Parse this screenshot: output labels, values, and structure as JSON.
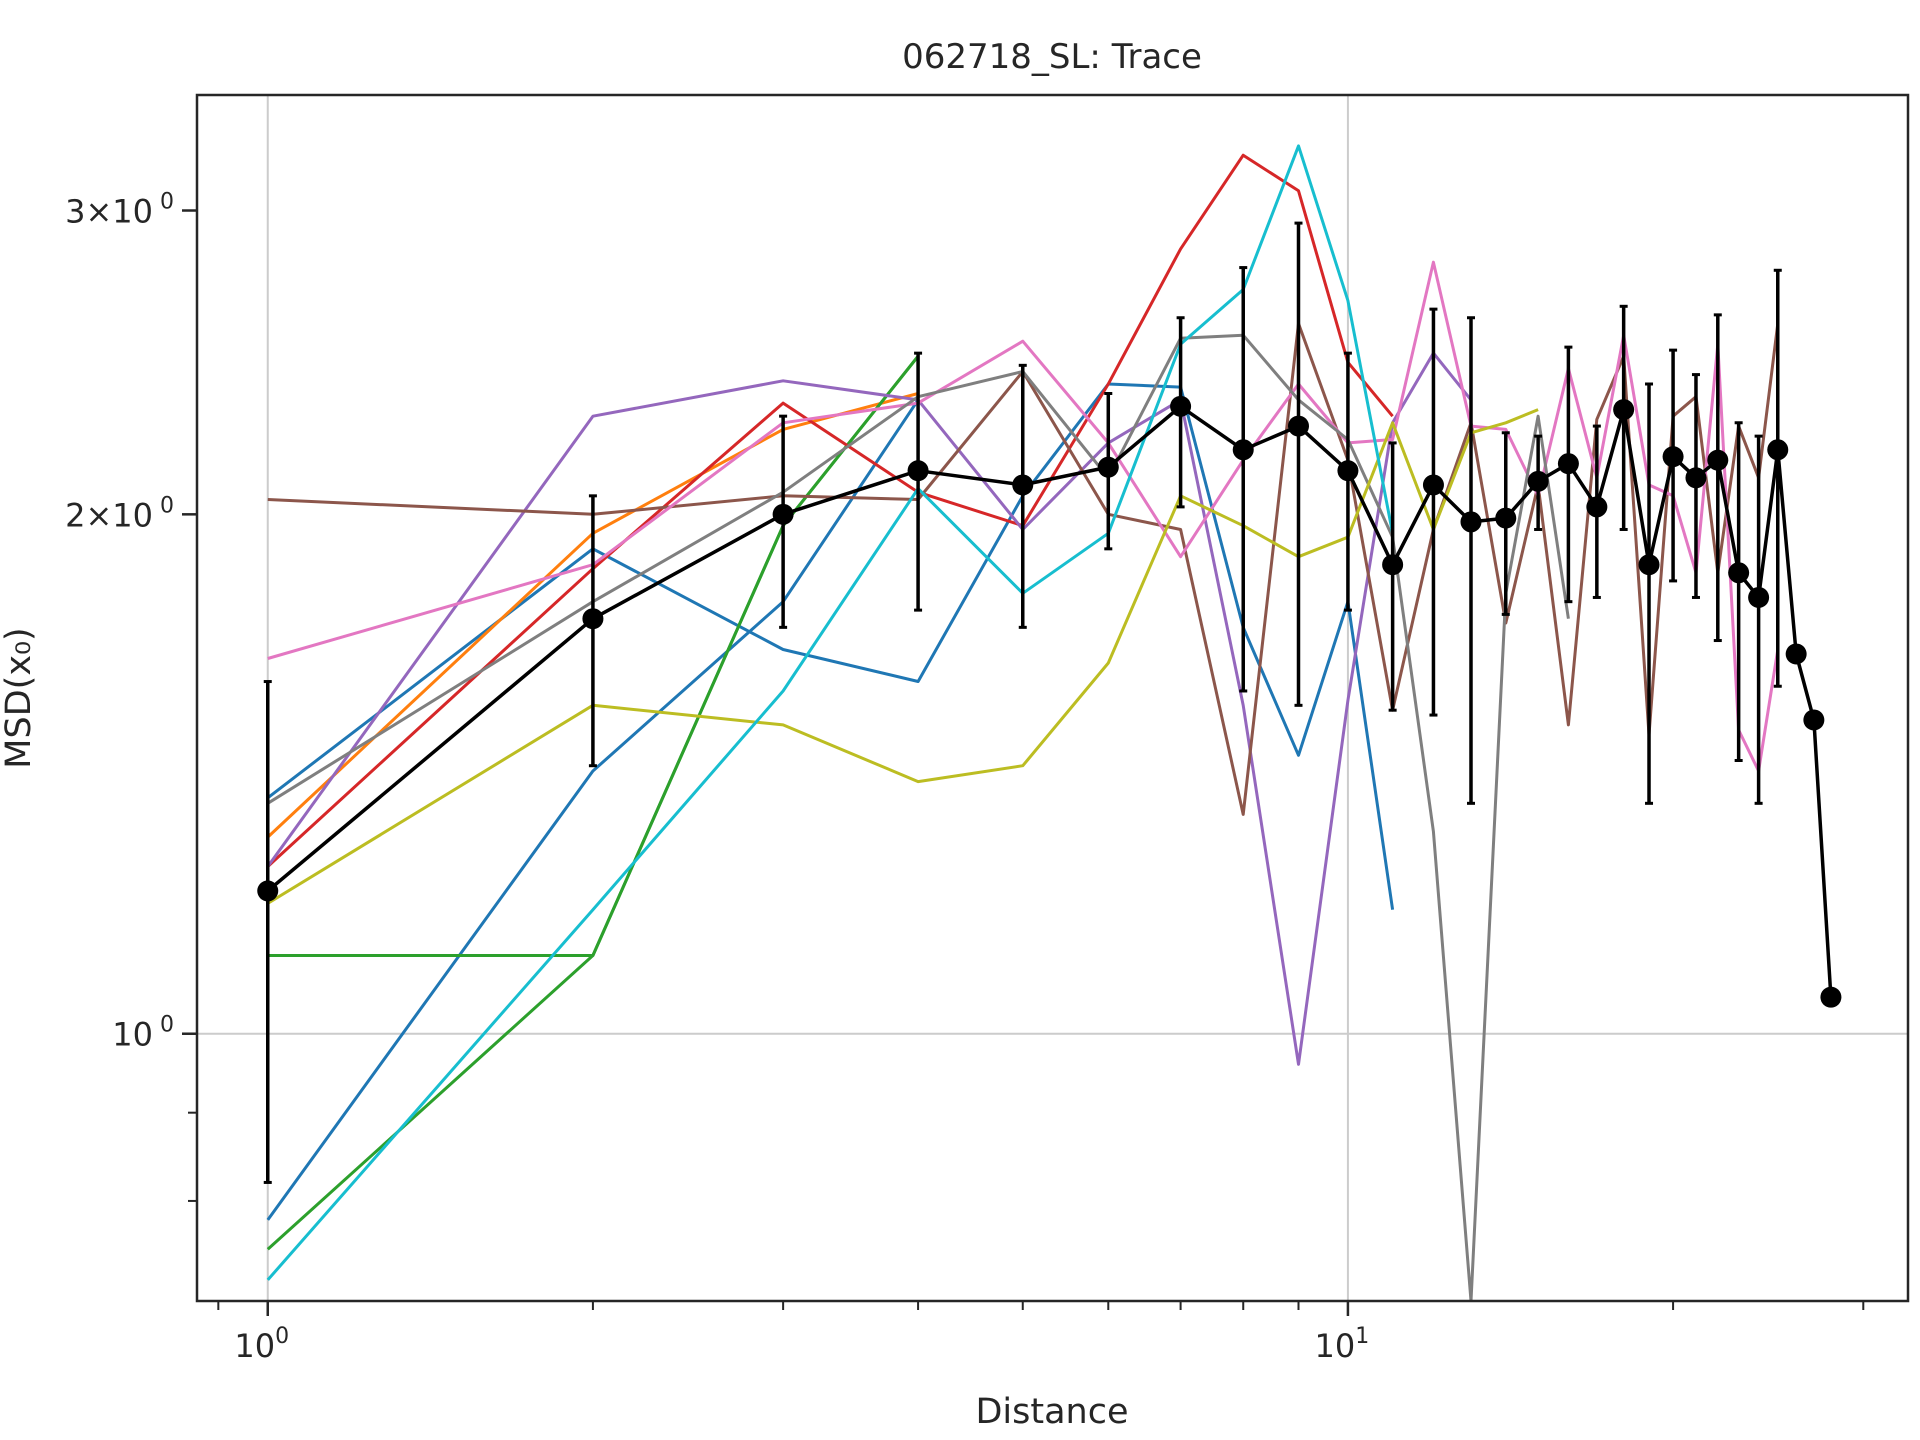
{
  "chart_data": {
    "type": "line",
    "title": "062718_SL: Trace",
    "xlabel": "Distance",
    "ylabel": "MSD(x₀)",
    "x_scale": "log",
    "y_scale": "log",
    "xlim": [
      0.86,
      33
    ],
    "ylim": [
      0.7,
      3.5
    ],
    "grid": true,
    "x_ticks": [
      {
        "value": 1,
        "base": "10",
        "exp": "0"
      },
      {
        "value": 10,
        "base": "10",
        "exp": "1"
      }
    ],
    "y_ticks": [
      {
        "value": 1,
        "label": "10",
        "exp": "0"
      },
      {
        "value": 2,
        "label": "2×10",
        "exp": "0"
      },
      {
        "value": 3,
        "label": "3×10",
        "exp": "0"
      }
    ],
    "colors": {
      "blue": "#1f77b4",
      "orange": "#ff7f0e",
      "green": "#2ca02c",
      "red": "#d62728",
      "purple": "#9467bd",
      "brown": "#8c564b",
      "pink": "#e377c2",
      "gray": "#7f7f7f",
      "olive": "#bcbd22",
      "cyan": "#17becf",
      "mean": "#000000"
    },
    "series": [
      {
        "color": "#1f77b4",
        "x": [
          1,
          2,
          3,
          4,
          5,
          6,
          7,
          8,
          9,
          10,
          11
        ],
        "y": [
          1.37,
          1.91,
          1.67,
          1.6,
          2.05,
          2.38,
          2.37,
          1.72,
          1.45,
          1.78,
          1.18
        ]
      },
      {
        "color": "#1f77b4",
        "x": [
          1,
          2,
          3,
          4
        ],
        "y": [
          0.78,
          1.42,
          1.78,
          2.33
        ]
      },
      {
        "color": "#ff7f0e",
        "x": [
          1,
          2,
          3,
          4
        ],
        "y": [
          1.3,
          1.95,
          2.24,
          2.35
        ]
      },
      {
        "color": "#2ca02c",
        "x": [
          1,
          2,
          3,
          4
        ],
        "y": [
          1.11,
          1.11,
          1.97,
          2.47
        ]
      },
      {
        "color": "#2ca02c",
        "x": [
          1,
          2,
          3,
          4
        ],
        "y": [
          0.75,
          1.11,
          1.97,
          2.47
        ]
      },
      {
        "color": "#d62728",
        "x": [
          1,
          2,
          3,
          4,
          5,
          6,
          7,
          8,
          9,
          10,
          11
        ],
        "y": [
          1.25,
          1.86,
          2.32,
          2.06,
          1.97,
          2.38,
          2.85,
          3.23,
          3.08,
          2.45,
          2.28
        ]
      },
      {
        "color": "#9467bd",
        "x": [
          1,
          2,
          3,
          4,
          5,
          6,
          7,
          8,
          9,
          10,
          11,
          12,
          13
        ],
        "y": [
          1.25,
          2.28,
          2.39,
          2.33,
          1.96,
          2.2,
          2.33,
          1.55,
          0.96,
          1.56,
          2.26,
          2.48,
          2.33
        ]
      },
      {
        "color": "#8c564b",
        "x": [
          1,
          2,
          3,
          4,
          5,
          6,
          7,
          8,
          9,
          10,
          11,
          12,
          13,
          14,
          15,
          16,
          17,
          18,
          19,
          20,
          21,
          22,
          23,
          24,
          25
        ],
        "y": [
          2.04,
          2.0,
          2.05,
          2.04,
          2.42,
          2.0,
          1.96,
          1.34,
          2.58,
          2.15,
          1.54,
          1.96,
          2.26,
          1.73,
          2.08,
          1.51,
          2.27,
          2.47,
          1.49,
          2.28,
          2.34,
          1.85,
          2.25,
          2.1,
          2.58
        ]
      },
      {
        "color": "#e377c2",
        "x": [
          1,
          2,
          3,
          4,
          5,
          6,
          7,
          8,
          9,
          10,
          11,
          12,
          13,
          14,
          15,
          16,
          17,
          18,
          19,
          20,
          21,
          22,
          23,
          24,
          25
        ],
        "y": [
          1.65,
          1.87,
          2.26,
          2.32,
          2.52,
          2.2,
          1.89,
          2.15,
          2.38,
          2.2,
          2.21,
          2.8,
          2.25,
          2.24,
          2.05,
          2.43,
          2.1,
          2.54,
          2.08,
          2.05,
          1.85,
          2.51,
          1.5,
          1.42,
          1.67
        ]
      },
      {
        "color": "#7f7f7f",
        "x": [
          1,
          2,
          3,
          4,
          5,
          6,
          7,
          8,
          9,
          10,
          11,
          12,
          13,
          14,
          15,
          16
        ],
        "y": [
          1.36,
          1.78,
          2.06,
          2.34,
          2.42,
          2.1,
          2.53,
          2.54,
          2.33,
          2.21,
          1.94,
          1.31,
          0.7,
          1.8,
          2.28,
          1.74
        ]
      },
      {
        "color": "#bcbd22",
        "x": [
          1,
          2,
          3,
          4,
          5,
          6,
          7,
          8,
          9,
          10,
          11,
          12,
          13,
          14,
          15
        ],
        "y": [
          1.19,
          1.55,
          1.51,
          1.4,
          1.43,
          1.64,
          2.05,
          1.97,
          1.89,
          1.94,
          2.26,
          1.96,
          2.23,
          2.26,
          2.3
        ]
      },
      {
        "color": "#17becf",
        "x": [
          1,
          2,
          3,
          4,
          5,
          6,
          7,
          8,
          9,
          10,
          11
        ],
        "y": [
          0.72,
          1.18,
          1.58,
          2.07,
          1.8,
          1.95,
          2.51,
          2.7,
          3.27,
          2.66,
          1.95
        ]
      }
    ],
    "mean": {
      "color": "#000000",
      "x": [
        1,
        2,
        3,
        4,
        5,
        6,
        7,
        8,
        9,
        10,
        11,
        12,
        13,
        14,
        15,
        16,
        17,
        18,
        19,
        20,
        21,
        22,
        23,
        24,
        25,
        26,
        27,
        28
      ],
      "y": [
        1.21,
        1.74,
        2.0,
        2.12,
        2.08,
        2.13,
        2.31,
        2.18,
        2.25,
        2.12,
        1.87,
        2.08,
        1.98,
        1.99,
        2.09,
        2.14,
        2.02,
        2.3,
        1.87,
        2.16,
        2.1,
        2.15,
        1.85,
        1.79,
        2.18,
        1.66,
        1.52,
        1.05
      ],
      "err": [
        0.39,
        0.31,
        0.28,
        0.36,
        0.36,
        0.22,
        0.29,
        0.6,
        0.7,
        0.36,
        0.33,
        0.55,
        0.62,
        0.24,
        0.13,
        0.36,
        0.23,
        0.34,
        0.51,
        0.33,
        0.31,
        0.46,
        0.41,
        0.43,
        0.59,
        0,
        0,
        0
      ]
    }
  }
}
